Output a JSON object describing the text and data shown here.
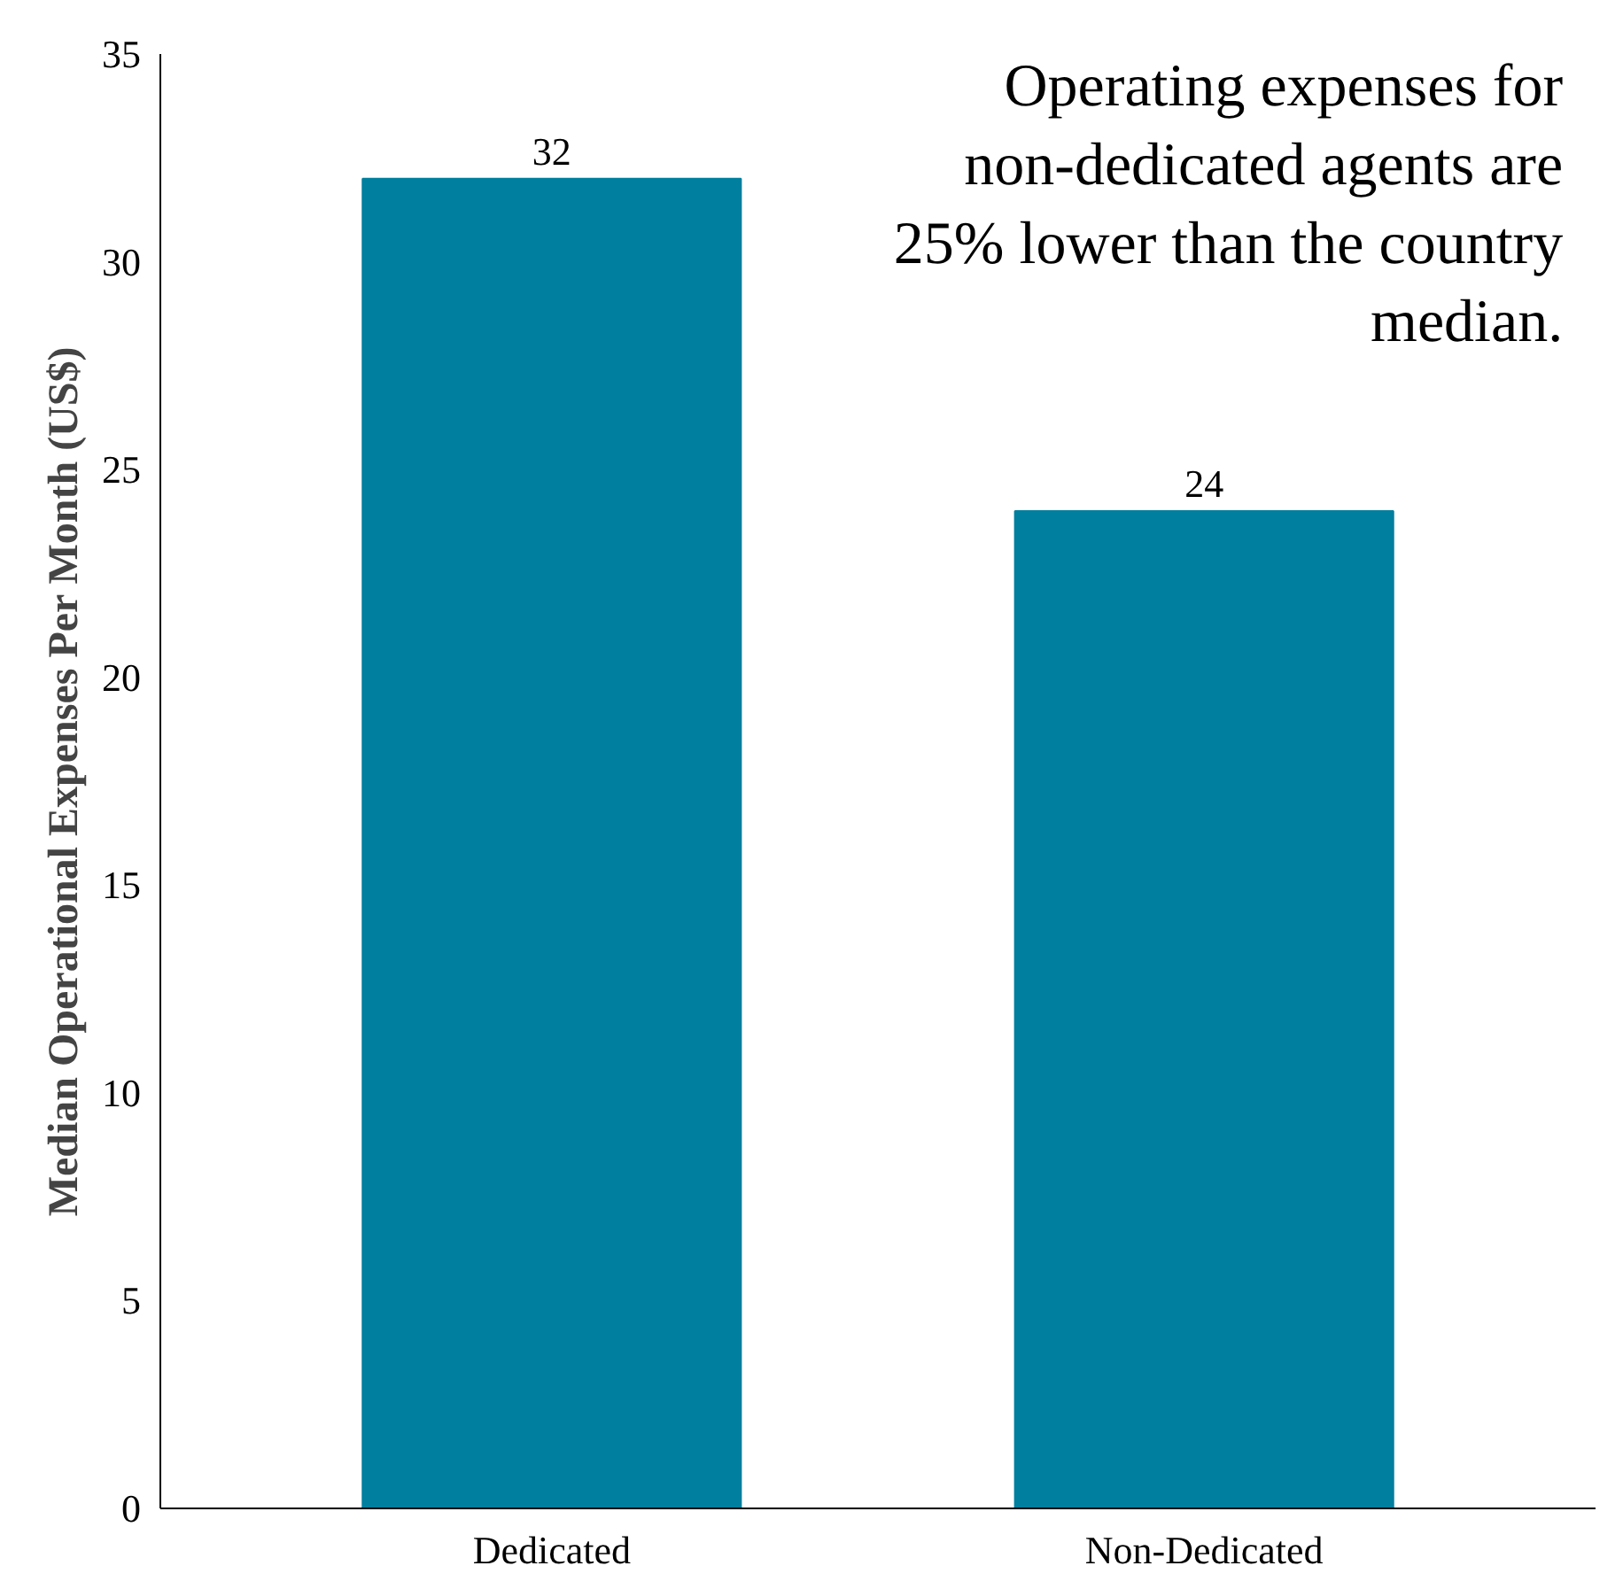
{
  "chart_data": {
    "type": "bar",
    "categories": [
      "Dedicated",
      "Non-Dedicated"
    ],
    "values": [
      32,
      24
    ],
    "color": "#007f9f",
    "ylabel": "Median Operational Expenses Per Month (US$)",
    "ylim": [
      0,
      35
    ],
    "yticks": [
      0,
      5,
      10,
      15,
      20,
      25,
      30,
      35
    ],
    "data_labels": true,
    "grid": false,
    "annotations": [
      "Operating expenses for non-dedicated agents are 25% lower than the country median."
    ]
  }
}
